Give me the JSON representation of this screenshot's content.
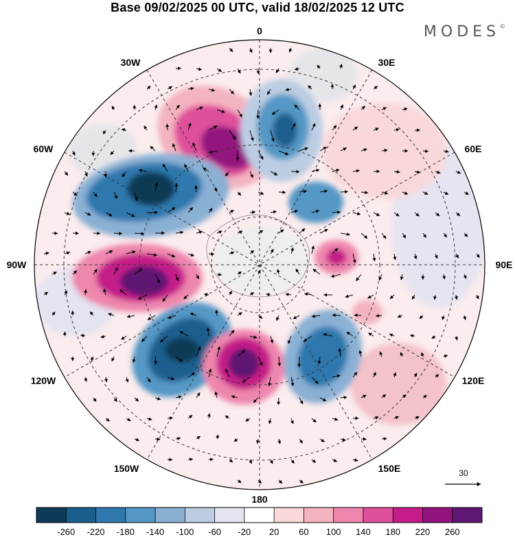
{
  "header": {
    "title": "Base 09/02/2025 00 UTC, valid 18/02/2025 12 UTC",
    "brand": "MODES",
    "brand_mark": "©"
  },
  "map": {
    "projection": "south-polar-stereographic",
    "longitude_labels": [
      {
        "id": "0",
        "text": "0"
      },
      {
        "id": "30e",
        "text": "30E"
      },
      {
        "id": "60e",
        "text": "60E"
      },
      {
        "id": "90e",
        "text": "90E"
      },
      {
        "id": "120e",
        "text": "120E"
      },
      {
        "id": "150e",
        "text": "150E"
      },
      {
        "id": "180",
        "text": "180"
      },
      {
        "id": "150w",
        "text": "150W"
      },
      {
        "id": "120w",
        "text": "120W"
      },
      {
        "id": "90w",
        "text": "90W"
      },
      {
        "id": "60w",
        "text": "60W"
      },
      {
        "id": "30w",
        "text": "30W"
      }
    ],
    "vector_reference": "30"
  },
  "colorbar": {
    "colors": [
      "#0d3a57",
      "#1a5e8e",
      "#2f78ae",
      "#5597c5",
      "#8ab0d4",
      "#bccde3",
      "#e4e3f0",
      "#ffffff",
      "#f9d8da",
      "#f4b3c0",
      "#ee86ad",
      "#df4f9b",
      "#c41c88",
      "#92137e",
      "#5e1772"
    ],
    "labels": [
      "-260",
      "-220",
      "-180",
      "-140",
      "-100",
      "-60",
      "-20",
      "20",
      "60",
      "100",
      "140",
      "180",
      "220",
      "260"
    ]
  }
}
